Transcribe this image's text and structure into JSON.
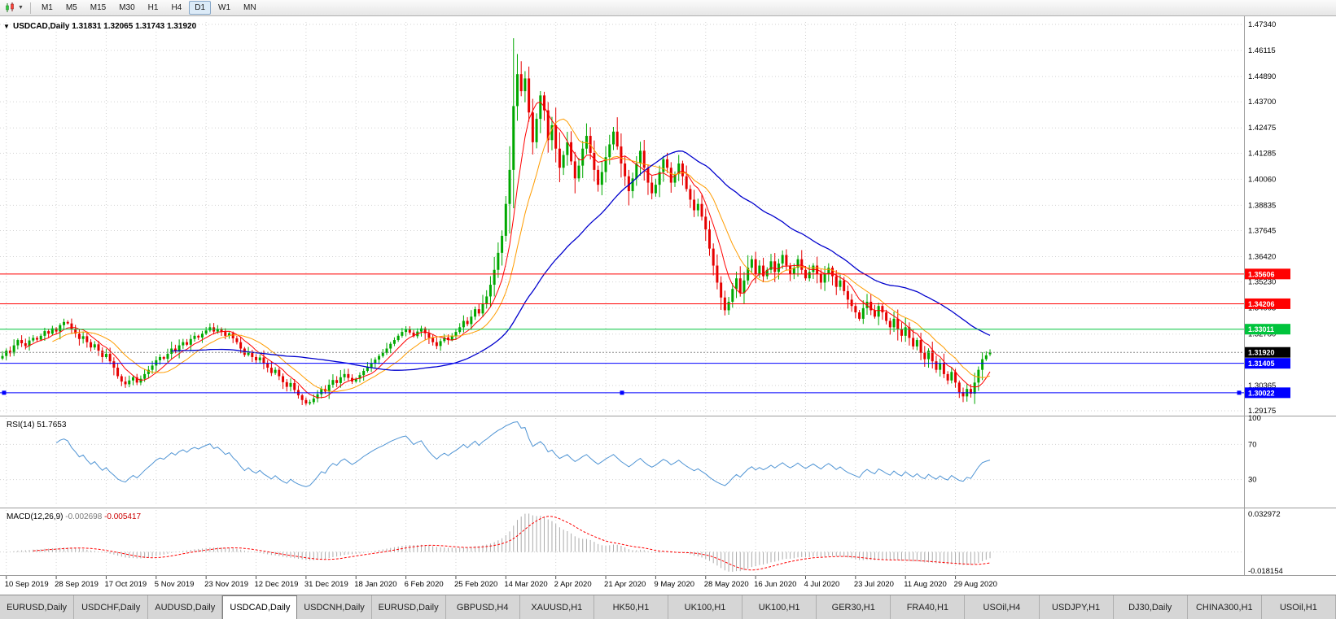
{
  "toolbar": {
    "chart_icon": "candlestick-chart-icon",
    "timeframes": [
      {
        "label": "M1"
      },
      {
        "label": "M5"
      },
      {
        "label": "M15"
      },
      {
        "label": "M30"
      },
      {
        "label": "H1"
      },
      {
        "label": "H4"
      },
      {
        "label": "D1",
        "active": true
      },
      {
        "label": "W1"
      },
      {
        "label": "MN"
      }
    ]
  },
  "chart": {
    "symbol": "USDCAD",
    "timeframe": "Daily",
    "ohlc": {
      "open": "1.31831",
      "high": "1.32065",
      "low": "1.31743",
      "close": "1.31920"
    },
    "rsi": {
      "name": "RSI(14)",
      "value": "51.7653"
    },
    "macd": {
      "name": "MACD(12,26,9)",
      "value": "-0.002698",
      "signal": "-0.005417"
    }
  },
  "chart_data": {
    "type": "candlestick",
    "symbol": "USDCAD",
    "timeframe": "Daily",
    "x_axis": {
      "labels": [
        "10 Sep 2019",
        "28 Sep 2019",
        "17 Oct 2019",
        "5 Nov 2019",
        "23 Nov 2019",
        "12 Dec 2019",
        "31 Dec 2019",
        "18 Jan 2020",
        "6 Feb 2020",
        "25 Feb 2020",
        "14 Mar 2020",
        "2 Apr 2020",
        "21 Apr 2020",
        "9 May 2020",
        "28 May 2020",
        "16 Jun 2020",
        "4 Jul 2020",
        "23 Jul 2020",
        "11 Aug 2020",
        "29 Aug 2020"
      ],
      "start_bar": 1,
      "step": 13
    },
    "price_pane": {
      "ylim": [
        1.2906,
        1.47455
      ],
      "ticks": [
        "1.47340",
        "1.46115",
        "1.44890",
        "1.43700",
        "1.42475",
        "1.41285",
        "1.40060",
        "1.38835",
        "1.37645",
        "1.36420",
        "1.35230",
        "1.34005",
        "1.32780",
        "1.30365",
        "1.29175"
      ]
    },
    "closes": [
      1.3175,
      1.32,
      1.3188,
      1.3225,
      1.325,
      1.3235,
      1.3222,
      1.3248,
      1.326,
      1.3252,
      1.327,
      1.3292,
      1.328,
      1.3305,
      1.329,
      1.332,
      1.3335,
      1.3328,
      1.33,
      1.328,
      1.3255,
      1.3268,
      1.324,
      1.3215,
      1.323,
      1.32,
      1.317,
      1.3185,
      1.315,
      1.312,
      1.308,
      1.3055,
      1.3042,
      1.306,
      1.3075,
      1.305,
      1.3068,
      1.309,
      1.311,
      1.313,
      1.3155,
      1.317,
      1.3162,
      1.3185,
      1.321,
      1.3198,
      1.3225,
      1.324,
      1.3228,
      1.3255,
      1.327,
      1.3262,
      1.328,
      1.3295,
      1.331,
      1.329,
      1.3302,
      1.3288,
      1.327,
      1.3282,
      1.3258,
      1.324,
      1.321,
      1.318,
      1.3195,
      1.317,
      1.3155,
      1.3168,
      1.314,
      1.312,
      1.3095,
      1.311,
      1.308,
      1.3052,
      1.303,
      1.3048,
      1.3015,
      1.299,
      1.2968,
      1.2952,
      1.2958,
      1.2975,
      1.2995,
      1.302,
      1.3008,
      1.304,
      1.3062,
      1.3048,
      1.3075,
      1.309,
      1.3072,
      1.3055,
      1.3068,
      1.3085,
      1.3105,
      1.3122,
      1.314,
      1.3158,
      1.3175,
      1.319,
      1.321,
      1.3232,
      1.325,
      1.327,
      1.3288,
      1.33,
      1.3285,
      1.3268,
      1.329,
      1.3305,
      1.3282,
      1.326,
      1.324,
      1.3222,
      1.3245,
      1.3262,
      1.325,
      1.327,
      1.3288,
      1.331,
      1.334,
      1.3325,
      1.336,
      1.3395,
      1.3375,
      1.342,
      1.3455,
      1.351,
      1.358,
      1.366,
      1.374,
      1.389,
      1.405,
      1.435,
      1.45,
      1.442,
      1.448,
      1.432,
      1.418,
      1.429,
      1.44,
      1.433,
      1.419,
      1.426,
      1.415,
      1.406,
      1.412,
      1.418,
      1.409,
      1.401,
      1.407,
      1.415,
      1.421,
      1.413,
      1.405,
      1.398,
      1.404,
      1.411,
      1.417,
      1.423,
      1.416,
      1.408,
      1.402,
      1.395,
      1.401,
      1.408,
      1.414,
      1.406,
      1.399,
      1.394,
      1.398,
      1.404,
      1.41,
      1.406,
      1.399,
      1.403,
      1.408,
      1.402,
      1.396,
      1.391,
      1.386,
      1.389,
      1.383,
      1.377,
      1.368,
      1.36,
      1.352,
      1.345,
      1.339,
      1.343,
      1.349,
      1.354,
      1.347,
      1.353,
      1.359,
      1.363,
      1.356,
      1.36,
      1.355,
      1.358,
      1.362,
      1.357,
      1.361,
      1.365,
      1.36,
      1.356,
      1.359,
      1.363,
      1.358,
      1.354,
      1.357,
      1.36,
      1.356,
      1.352,
      1.356,
      1.359,
      1.355,
      1.35,
      1.353,
      1.348,
      1.344,
      1.341,
      1.338,
      1.335,
      1.34,
      1.343,
      1.339,
      1.336,
      1.341,
      1.338,
      1.334,
      1.331,
      1.335,
      1.33,
      1.327,
      1.331,
      1.326,
      1.322,
      1.325,
      1.319,
      1.316,
      1.32,
      1.315,
      1.311,
      1.314,
      1.309,
      1.306,
      1.31,
      1.305,
      1.3005,
      1.2985,
      1.302,
      1.2998,
      1.305,
      1.311,
      1.316,
      1.3178,
      1.3192
    ],
    "last_ohlc": [
      1.31831,
      1.32065,
      1.31743,
      1.3192
    ],
    "spike": {
      "bar": 133,
      "high": 1.4669
    },
    "moving_averages": [
      {
        "period": 7,
        "color": "#ff0000",
        "width": 1
      },
      {
        "period": 14,
        "color": "#ff9c00",
        "width": 1
      },
      {
        "period": 45,
        "color": "#0000cd",
        "width": 1.3
      }
    ],
    "horizontal_lines": [
      {
        "label": "1.35606",
        "price": 1.35606,
        "color": "#ff0000"
      },
      {
        "label": "1.34206",
        "price": 1.34206,
        "color": "#ff0000"
      },
      {
        "label": "1.33011",
        "price": 1.33011,
        "color": "#00c43c"
      },
      {
        "label": "1.31405",
        "price": 1.31405,
        "color": "#0000ff"
      },
      {
        "label": "1.30022",
        "price": 1.30022,
        "color": "#0000ff",
        "selected": true
      }
    ],
    "current_price": {
      "label": "1.31920",
      "value": 1.3192,
      "color": "#000000"
    },
    "rsi": {
      "period": 14,
      "color": "#4f94d4",
      "ticks": [
        {
          "label": "100",
          "value": 100
        },
        {
          "label": "70",
          "value": 70
        },
        {
          "label": "30",
          "value": 30
        }
      ],
      "levels": [
        70,
        30
      ]
    },
    "macd": {
      "fast": 12,
      "slow": 26,
      "signal_period": 9,
      "ylim": [
        -0.018154,
        0.032972
      ],
      "ticks": [
        {
          "label": "0.032972",
          "value": 0.032972
        },
        {
          "label": "-0.018154",
          "value": -0.018154
        }
      ],
      "hist_color": "#ababab",
      "signal_color": "#ff0000"
    },
    "colors": {
      "bull": "#00a800",
      "bear": "#e60000",
      "grid": "#d2d2d2"
    }
  },
  "tabs": [
    {
      "label": "EURUSD,Daily"
    },
    {
      "label": "USDCHF,Daily"
    },
    {
      "label": "AUDUSD,Daily"
    },
    {
      "label": "USDCAD,Daily",
      "active": true
    },
    {
      "label": "USDCNH,Daily"
    },
    {
      "label": "EURUSD,Daily"
    },
    {
      "label": "GBPUSD,H4"
    },
    {
      "label": "XAUUSD,H1"
    },
    {
      "label": "HK50,H1"
    },
    {
      "label": "UK100,H1"
    },
    {
      "label": "UK100,H1"
    },
    {
      "label": "GER30,H1"
    },
    {
      "label": "FRA40,H1"
    },
    {
      "label": "USOil,H4"
    },
    {
      "label": "USDJPY,H1"
    },
    {
      "label": "DJ30,Daily"
    },
    {
      "label": "CHINA300,H1"
    },
    {
      "label": "USOil,H1"
    }
  ]
}
